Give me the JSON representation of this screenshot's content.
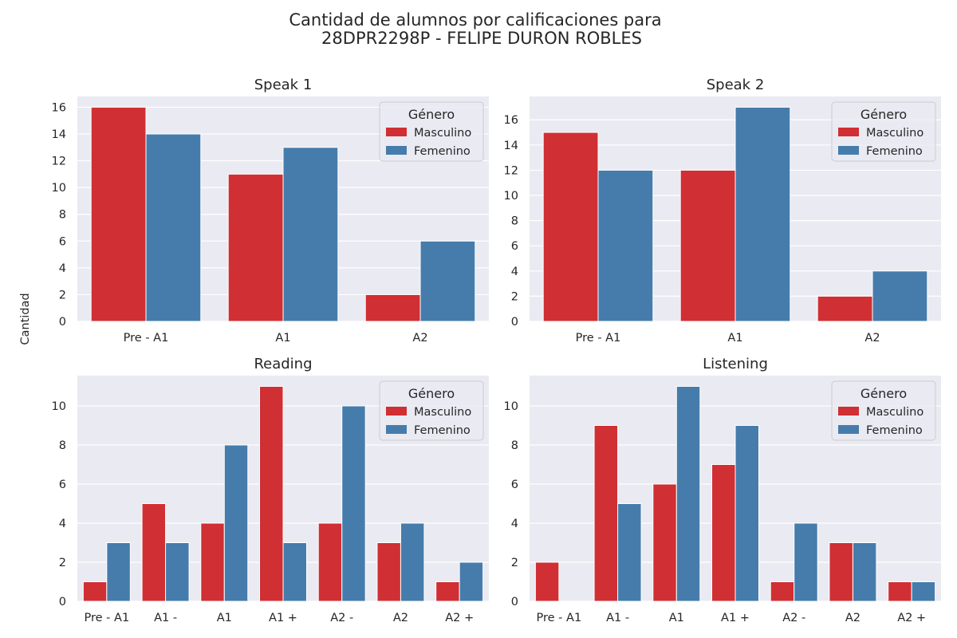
{
  "figure": {
    "title_line1": "Cantidad de alumnos por calificaciones para",
    "title_line2": "28DPR2298P - FELIPE DURON ROBLES",
    "ylabel": "Cantidad"
  },
  "colors": {
    "masculino": "#d02f33",
    "femenino": "#467cab",
    "panel_bg": "#eaeaf2",
    "grid": "#ffffff"
  },
  "chart_data": [
    {
      "type": "bar",
      "title": "Speak 1",
      "categories": [
        "Pre - A1",
        "A1",
        "A2"
      ],
      "series": [
        {
          "name": "Masculino",
          "values": [
            16,
            11,
            2
          ]
        },
        {
          "name": "Femenino",
          "values": [
            14,
            13,
            6
          ]
        }
      ],
      "ylim": [
        0,
        16.8
      ],
      "yticks": [
        0,
        2,
        4,
        6,
        8,
        10,
        12,
        14,
        16
      ],
      "legend": {
        "title": "Género",
        "position": "top-right"
      },
      "grid": true
    },
    {
      "type": "bar",
      "title": "Speak 2",
      "categories": [
        "Pre - A1",
        "A1",
        "A2"
      ],
      "series": [
        {
          "name": "Masculino",
          "values": [
            15,
            12,
            2
          ]
        },
        {
          "name": "Femenino",
          "values": [
            12,
            17,
            4
          ]
        }
      ],
      "ylim": [
        0,
        17.85
      ],
      "yticks": [
        0,
        2,
        4,
        6,
        8,
        10,
        12,
        14,
        16
      ],
      "legend": {
        "title": "Género",
        "position": "top-right"
      },
      "grid": true
    },
    {
      "type": "bar",
      "title": "Reading",
      "categories": [
        "Pre - A1",
        "A1 -",
        "A1",
        "A1 +",
        "A2 -",
        "A2",
        "A2 +"
      ],
      "series": [
        {
          "name": "Masculino",
          "values": [
            1,
            5,
            4,
            11,
            4,
            3,
            1
          ]
        },
        {
          "name": "Femenino",
          "values": [
            3,
            3,
            8,
            3,
            10,
            4,
            2
          ]
        }
      ],
      "ylim": [
        0,
        11.55
      ],
      "yticks": [
        0,
        2,
        4,
        6,
        8,
        10
      ],
      "legend": {
        "title": "Género",
        "position": "top-right"
      },
      "grid": true
    },
    {
      "type": "bar",
      "title": "Listening",
      "categories": [
        "Pre - A1",
        "A1 -",
        "A1",
        "A1 +",
        "A2 -",
        "A2",
        "A2 +"
      ],
      "series": [
        {
          "name": "Masculino",
          "values": [
            2,
            9,
            6,
            7,
            1,
            3,
            1
          ]
        },
        {
          "name": "Femenino",
          "values": [
            0,
            5,
            11,
            9,
            4,
            3,
            1
          ]
        }
      ],
      "ylim": [
        0,
        11.55
      ],
      "yticks": [
        0,
        2,
        4,
        6,
        8,
        10
      ],
      "legend": {
        "title": "Género",
        "position": "top-right"
      },
      "grid": true
    }
  ]
}
